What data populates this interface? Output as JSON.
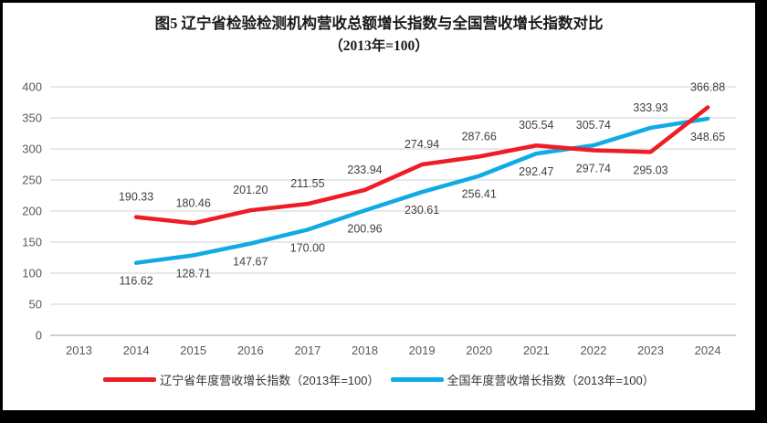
{
  "chart_data": {
    "type": "line",
    "title": "图5  辽宁省检验检测机构营收总额增长指数与全国营收增长指数对比",
    "subtitle": "（2013年=100）",
    "categories": [
      "2013",
      "2014",
      "2015",
      "2016",
      "2017",
      "2018",
      "2019",
      "2020",
      "2021",
      "2022",
      "2023",
      "2024"
    ],
    "ylim": [
      0,
      400
    ],
    "ytick_step": 50,
    "grid": "horizontal",
    "legend_position": "bottom",
    "series": [
      {
        "name": "辽宁省年度营收增长指数（2013年=100）",
        "color": "#ee1c25",
        "values": [
          null,
          190.33,
          180.46,
          201.2,
          211.55,
          233.94,
          274.94,
          287.66,
          305.54,
          297.74,
          295.03,
          366.88
        ],
        "label_side": [
          null,
          "above",
          "above",
          "above",
          "above",
          "above",
          "above",
          "above",
          "above",
          "below",
          "below",
          "above"
        ]
      },
      {
        "name": "全国年度营收增长指数（2013年=100）",
        "color": "#10aae4",
        "values": [
          null,
          116.62,
          128.71,
          147.67,
          170.0,
          200.96,
          230.61,
          256.41,
          292.47,
          305.74,
          333.93,
          348.65
        ],
        "label_side": [
          null,
          "below",
          "below",
          "below",
          "below",
          "below",
          "below",
          "below",
          "below",
          "above",
          "above",
          "below"
        ]
      }
    ],
    "colors": {
      "gridline": "#d9d9d9",
      "axis_line": "#b2b2b2",
      "tick_label": "#595959",
      "data_label": "#3f3f3f"
    }
  }
}
